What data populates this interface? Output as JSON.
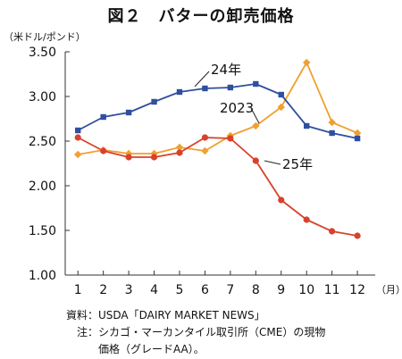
{
  "title": "図２　バターの卸売価格",
  "unit_label": "（米ドル/ポンド）",
  "chart_data": {
    "type": "line",
    "x": [
      1,
      2,
      3,
      4,
      5,
      6,
      7,
      8,
      9,
      10,
      11,
      12
    ],
    "x_unit_label": "（月）",
    "ylim": [
      1.0,
      3.5
    ],
    "y_ticks": [
      "1.00",
      "1.50",
      "2.00",
      "2.50",
      "3.00",
      "3.50"
    ],
    "grid": false,
    "series": [
      {
        "name": "24年",
        "color": "#2f4f9f",
        "marker": "square",
        "values": [
          2.62,
          2.77,
          2.82,
          2.94,
          3.05,
          3.09,
          3.1,
          3.14,
          3.02,
          2.67,
          2.59,
          2.53
        ]
      },
      {
        "name": "2023",
        "color": "#f0a030",
        "marker": "diamond",
        "values": [
          2.35,
          2.4,
          2.36,
          2.36,
          2.43,
          2.39,
          2.56,
          2.67,
          2.88,
          3.38,
          2.71,
          2.59
        ]
      },
      {
        "name": "25年",
        "color": "#d9412b",
        "marker": "circle",
        "values": [
          2.54,
          2.39,
          2.32,
          2.32,
          2.37,
          2.54,
          2.53,
          2.28,
          1.84,
          1.62,
          1.49,
          1.44
        ]
      }
    ]
  },
  "notes": {
    "source_key": "資料：",
    "source_val": "USDA「DAIRY MARKET NEWS」",
    "note_key": "注：",
    "note_val": "シカゴ・マーカンタイル取引所（CME）の現物",
    "note_cont": "価格（グレードAA）。"
  }
}
